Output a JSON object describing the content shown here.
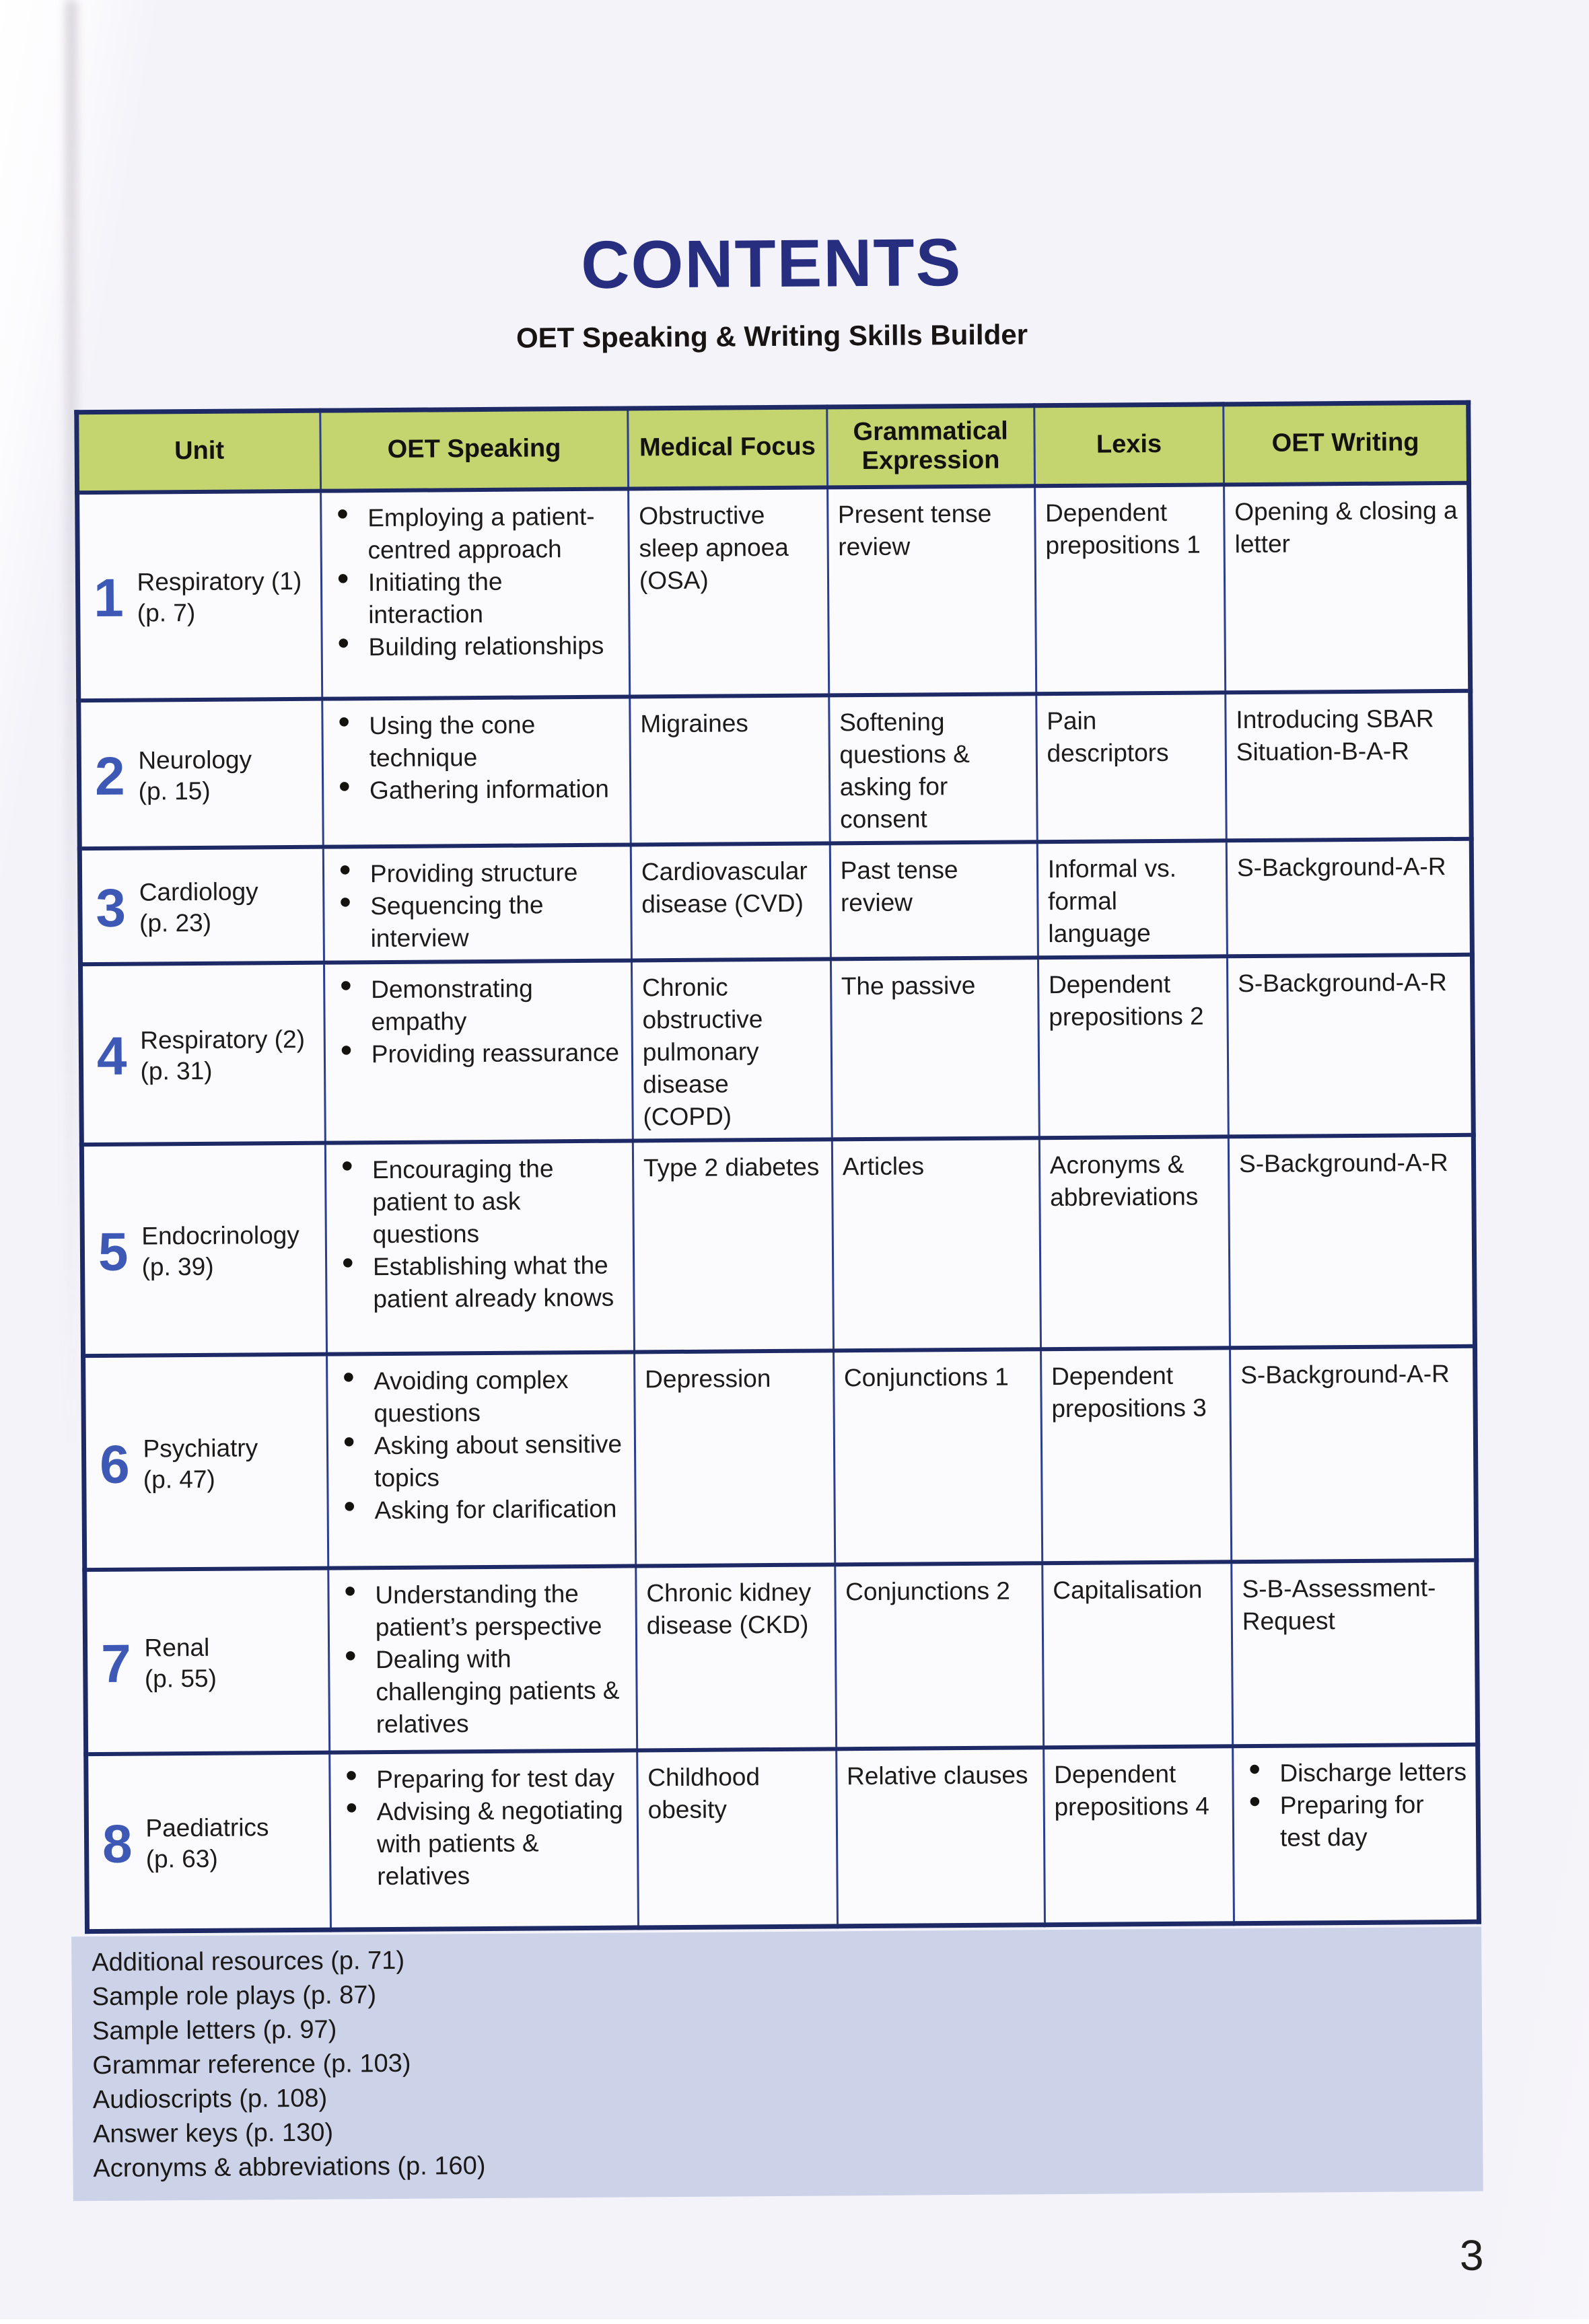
{
  "page": {
    "title": "CONTENTS",
    "subtitle": "OET Speaking & Writing Skills Builder",
    "page_number": "3"
  },
  "colors": {
    "title_navy": "#272e7f",
    "table_border_navy": "#1e2a66",
    "header_green": "#c4d46e",
    "unit_number_blue": "#3d59b5",
    "resources_strip_bg": "#ccd3e9"
  },
  "table": {
    "headers": [
      "Unit",
      "OET Speaking",
      "Medical Focus",
      "Grammatical Expression",
      "Lexis",
      "OET Writing"
    ],
    "rows": [
      {
        "unit_number": "1",
        "unit_label": "Respiratory (1)",
        "unit_page": "(p. 7)",
        "speaking": [
          "Employing a patient-centred approach",
          "Initiating the interaction",
          "Building relationships"
        ],
        "medical_focus": "Obstructive sleep apnoea (OSA)",
        "grammatical_expression": "Present tense review",
        "lexis": "Dependent prepositions 1",
        "writing": [
          "Opening & closing a letter"
        ],
        "writing_bulleted": false
      },
      {
        "unit_number": "2",
        "unit_label": "Neurology",
        "unit_page": "(p. 15)",
        "speaking": [
          "Using the cone technique",
          "Gathering information"
        ],
        "medical_focus": "Migraines",
        "grammatical_expression": "Softening questions & asking for consent",
        "lexis": "Pain descriptors",
        "writing": [
          "Introducing SBAR Situation-B-A-R"
        ],
        "writing_bulleted": false
      },
      {
        "unit_number": "3",
        "unit_label": "Cardiology",
        "unit_page": "(p. 23)",
        "speaking": [
          "Providing structure",
          "Sequencing the interview"
        ],
        "medical_focus": "Cardiovascular disease (CVD)",
        "grammatical_expression": "Past tense review",
        "lexis": "Informal vs. formal language",
        "writing": [
          "S-Background-A-R"
        ],
        "writing_bulleted": false
      },
      {
        "unit_number": "4",
        "unit_label": "Respiratory (2)",
        "unit_page": "(p. 31)",
        "speaking": [
          "Demonstrating empathy",
          "Providing reassurance"
        ],
        "medical_focus": "Chronic obstructive pulmonary disease (COPD)",
        "grammatical_expression": "The passive",
        "lexis": "Dependent prepositions 2",
        "writing": [
          "S-Background-A-R"
        ],
        "writing_bulleted": false
      },
      {
        "unit_number": "5",
        "unit_label": "Endocrinology",
        "unit_page": "(p. 39)",
        "speaking": [
          "Encouraging the patient to ask questions",
          "Establishing what the patient already knows"
        ],
        "medical_focus": "Type 2 diabetes",
        "grammatical_expression": "Articles",
        "lexis": "Acronyms & abbreviations",
        "writing": [
          "S-Background-A-R"
        ],
        "writing_bulleted": false
      },
      {
        "unit_number": "6",
        "unit_label": "Psychiatry",
        "unit_page": "(p. 47)",
        "speaking": [
          "Avoiding complex questions",
          "Asking about sensitive topics",
          "Asking for clarification"
        ],
        "medical_focus": "Depression",
        "grammatical_expression": "Conjunctions 1",
        "lexis": "Dependent prepositions 3",
        "writing": [
          "S-Background-A-R"
        ],
        "writing_bulleted": false
      },
      {
        "unit_number": "7",
        "unit_label": "Renal",
        "unit_page": "(p. 55)",
        "speaking": [
          "Understanding the patient’s perspective",
          "Dealing with challenging patients & relatives"
        ],
        "medical_focus": "Chronic kidney disease (CKD)",
        "grammatical_expression": "Conjunctions 2",
        "lexis": "Capitalisation",
        "writing": [
          "S-B-Assessment-Request"
        ],
        "writing_bulleted": false
      },
      {
        "unit_number": "8",
        "unit_label": "Paediatrics",
        "unit_page": "(p. 63)",
        "speaking": [
          "Preparing for test day",
          "Advising & negotiating with patients & relatives"
        ],
        "medical_focus": "Childhood obesity",
        "grammatical_expression": "Relative clauses",
        "lexis": "Dependent prepositions 4",
        "writing": [
          "Discharge letters",
          "Preparing for test day"
        ],
        "writing_bulleted": true
      }
    ]
  },
  "resources": {
    "items": [
      "Additional resources (p. 71)",
      "Sample role plays (p. 87)",
      "Sample letters (p. 97)",
      "Grammar reference (p. 103)",
      "Audioscripts (p. 108)",
      "Answer keys (p. 130)",
      "Acronyms & abbreviations (p. 160)"
    ]
  }
}
